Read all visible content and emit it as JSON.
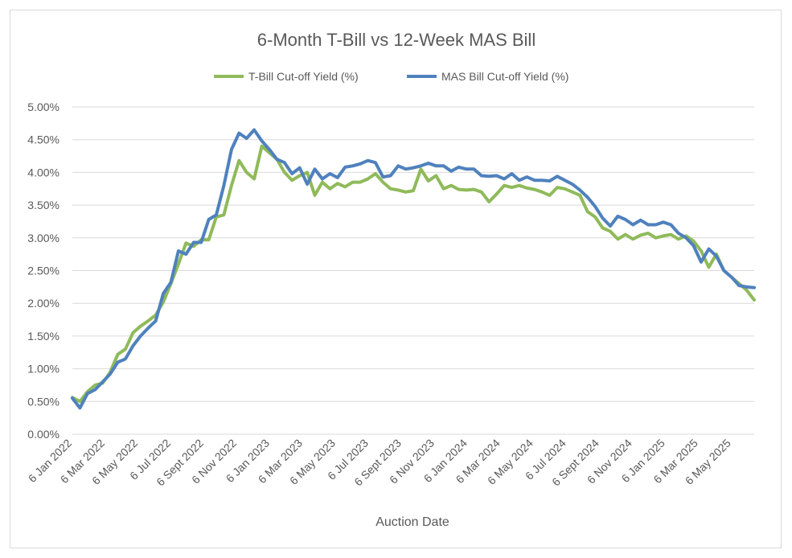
{
  "chart_data": {
    "type": "line",
    "title": "6-Month T-Bill vs 12-Week MAS Bill",
    "xlabel": "Auction Date",
    "ylabel": "",
    "ylim": [
      0,
      5
    ],
    "yticks": [
      "0.00%",
      "0.50%",
      "1.00%",
      "1.50%",
      "2.00%",
      "2.50%",
      "3.00%",
      "3.50%",
      "4.00%",
      "4.50%",
      "5.00%"
    ],
    "xticks": [
      "6 Jan 2022",
      "6 Mar 2022",
      "6 May 2022",
      "6 Jul 2022",
      "6 Sept 2022",
      "6 Nov 2022",
      "6 Jan 2023",
      "6 Mar 2023",
      "6 May 2023",
      "6 Jul 2023",
      "6 Sept 2023",
      "6 Nov 2023",
      "6 Jan 2024",
      "6 Mar 2024",
      "6 May 2024",
      "6 Jul 2024",
      "6 Sept 2024",
      "6 Nov 2024",
      "6 Jan 2025",
      "6 Mar 2025",
      "6 May 2025"
    ],
    "x_index_range": [
      0,
      84
    ],
    "legend_position": "top",
    "series": [
      {
        "name": "T-Bill Cut-off Yield (%)",
        "color": "#8fba5a",
        "points": [
          [
            0,
            0.56
          ],
          [
            1,
            0.5
          ],
          [
            2,
            0.65
          ],
          [
            3,
            0.75
          ],
          [
            4,
            0.78
          ],
          [
            5,
            0.95
          ],
          [
            6,
            1.22
          ],
          [
            7,
            1.3
          ],
          [
            8,
            1.55
          ],
          [
            9,
            1.65
          ],
          [
            10,
            1.73
          ],
          [
            11,
            1.82
          ],
          [
            12,
            2.02
          ],
          [
            13,
            2.3
          ],
          [
            14,
            2.6
          ],
          [
            15,
            2.92
          ],
          [
            16,
            2.87
          ],
          [
            17,
            2.97
          ],
          [
            18,
            2.97
          ],
          [
            19,
            3.32
          ],
          [
            20,
            3.35
          ],
          [
            21,
            3.8
          ],
          [
            22,
            4.18
          ],
          [
            23,
            4.0
          ],
          [
            24,
            3.9
          ],
          [
            25,
            4.4
          ],
          [
            26,
            4.3
          ],
          [
            27,
            4.2
          ],
          [
            28,
            4.0
          ],
          [
            29,
            3.88
          ],
          [
            30,
            3.95
          ],
          [
            31,
            4.0
          ],
          [
            32,
            3.65
          ],
          [
            33,
            3.85
          ],
          [
            34,
            3.75
          ],
          [
            35,
            3.83
          ],
          [
            36,
            3.78
          ],
          [
            37,
            3.85
          ],
          [
            38,
            3.85
          ],
          [
            39,
            3.9
          ],
          [
            40,
            3.98
          ],
          [
            41,
            3.85
          ],
          [
            42,
            3.75
          ],
          [
            43,
            3.73
          ],
          [
            44,
            3.7
          ],
          [
            45,
            3.72
          ],
          [
            46,
            4.05
          ],
          [
            47,
            3.87
          ],
          [
            48,
            3.95
          ],
          [
            49,
            3.75
          ],
          [
            50,
            3.8
          ],
          [
            51,
            3.74
          ],
          [
            52,
            3.73
          ],
          [
            53,
            3.74
          ],
          [
            54,
            3.7
          ],
          [
            55,
            3.55
          ],
          [
            56,
            3.67
          ],
          [
            57,
            3.8
          ],
          [
            58,
            3.77
          ],
          [
            59,
            3.8
          ],
          [
            60,
            3.76
          ],
          [
            61,
            3.74
          ],
          [
            62,
            3.7
          ],
          [
            63,
            3.65
          ],
          [
            64,
            3.77
          ],
          [
            65,
            3.75
          ],
          [
            66,
            3.7
          ],
          [
            67,
            3.65
          ],
          [
            68,
            3.4
          ],
          [
            69,
            3.32
          ],
          [
            70,
            3.15
          ],
          [
            71,
            3.1
          ],
          [
            72,
            2.98
          ],
          [
            73,
            3.05
          ],
          [
            74,
            2.98
          ],
          [
            75,
            3.04
          ],
          [
            76,
            3.07
          ],
          [
            77,
            3.0
          ],
          [
            78,
            3.03
          ],
          [
            79,
            3.05
          ],
          [
            80,
            2.98
          ],
          [
            81,
            3.03
          ],
          [
            82,
            2.95
          ],
          [
            83,
            2.8
          ],
          [
            84,
            2.55
          ]
        ],
        "points_tail": [
          [
            85,
            2.75
          ],
          [
            86,
            2.5
          ],
          [
            87,
            2.4
          ],
          [
            88,
            2.3
          ],
          [
            89,
            2.2
          ],
          [
            90,
            2.05
          ]
        ]
      },
      {
        "name": "MAS Bill Cut-off Yield (%)",
        "color": "#4f81bd",
        "points": [
          [
            0,
            0.55
          ],
          [
            1,
            0.4
          ],
          [
            2,
            0.62
          ],
          [
            3,
            0.68
          ],
          [
            4,
            0.8
          ],
          [
            5,
            0.92
          ],
          [
            6,
            1.1
          ],
          [
            7,
            1.15
          ],
          [
            8,
            1.35
          ],
          [
            9,
            1.5
          ],
          [
            10,
            1.62
          ],
          [
            11,
            1.73
          ],
          [
            12,
            2.15
          ],
          [
            13,
            2.32
          ],
          [
            14,
            2.8
          ],
          [
            15,
            2.75
          ],
          [
            16,
            2.93
          ],
          [
            17,
            2.93
          ],
          [
            18,
            3.28
          ],
          [
            19,
            3.35
          ],
          [
            20,
            3.8
          ],
          [
            21,
            4.35
          ],
          [
            22,
            4.6
          ],
          [
            23,
            4.52
          ],
          [
            24,
            4.65
          ],
          [
            25,
            4.48
          ],
          [
            26,
            4.35
          ],
          [
            27,
            4.2
          ],
          [
            28,
            4.15
          ],
          [
            29,
            3.98
          ],
          [
            30,
            4.07
          ],
          [
            31,
            3.82
          ],
          [
            32,
            4.05
          ],
          [
            33,
            3.9
          ],
          [
            34,
            3.98
          ],
          [
            35,
            3.92
          ],
          [
            36,
            4.08
          ],
          [
            37,
            4.1
          ],
          [
            38,
            4.13
          ],
          [
            39,
            4.18
          ],
          [
            40,
            4.15
          ],
          [
            41,
            3.93
          ],
          [
            42,
            3.95
          ],
          [
            43,
            4.1
          ],
          [
            44,
            4.05
          ],
          [
            45,
            4.07
          ],
          [
            46,
            4.1
          ],
          [
            47,
            4.14
          ],
          [
            48,
            4.1
          ],
          [
            49,
            4.1
          ],
          [
            50,
            4.02
          ],
          [
            51,
            4.08
          ],
          [
            52,
            4.05
          ],
          [
            53,
            4.05
          ],
          [
            54,
            3.95
          ],
          [
            55,
            3.94
          ],
          [
            56,
            3.95
          ],
          [
            57,
            3.9
          ],
          [
            58,
            3.98
          ],
          [
            59,
            3.88
          ],
          [
            60,
            3.93
          ],
          [
            61,
            3.88
          ],
          [
            62,
            3.88
          ],
          [
            63,
            3.87
          ],
          [
            64,
            3.94
          ],
          [
            65,
            3.88
          ],
          [
            66,
            3.82
          ],
          [
            67,
            3.73
          ],
          [
            68,
            3.62
          ],
          [
            69,
            3.48
          ],
          [
            70,
            3.3
          ],
          [
            71,
            3.18
          ],
          [
            72,
            3.33
          ],
          [
            73,
            3.28
          ],
          [
            74,
            3.2
          ],
          [
            75,
            3.27
          ],
          [
            76,
            3.2
          ],
          [
            77,
            3.2
          ],
          [
            78,
            3.24
          ],
          [
            79,
            3.2
          ],
          [
            80,
            3.07
          ],
          [
            81,
            3.0
          ],
          [
            82,
            2.88
          ],
          [
            83,
            2.63
          ],
          [
            84,
            2.83
          ]
        ],
        "points_tail": [
          [
            85,
            2.72
          ],
          [
            86,
            2.5
          ],
          [
            87,
            2.4
          ],
          [
            88,
            2.27
          ],
          [
            89,
            2.25
          ],
          [
            90,
            2.24
          ]
        ]
      }
    ]
  }
}
